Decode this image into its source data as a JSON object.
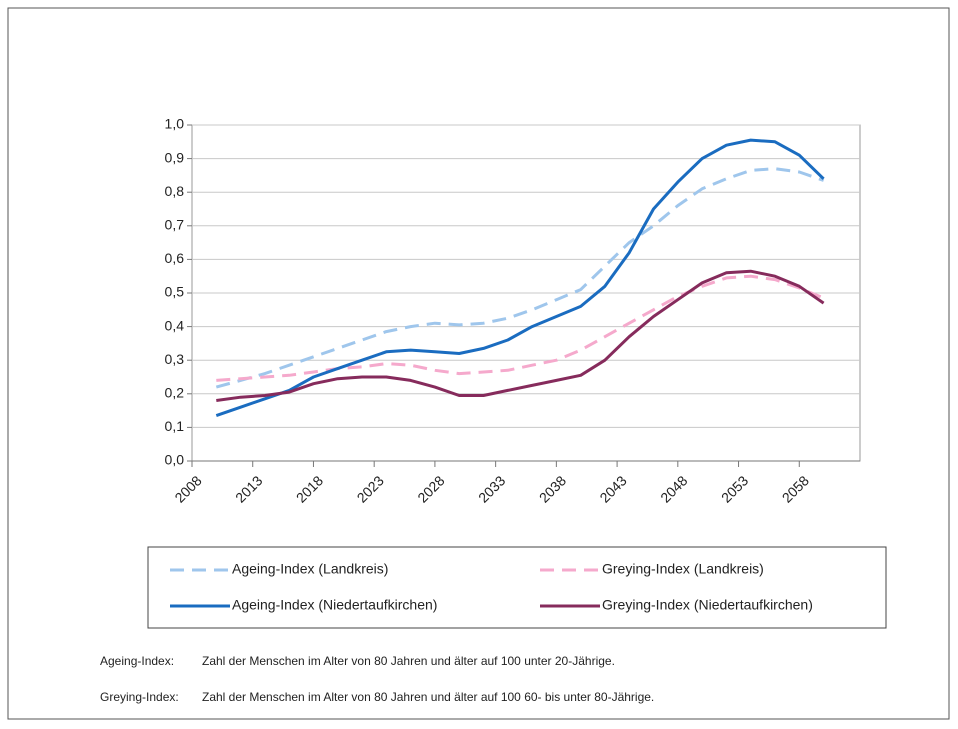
{
  "chart_data": {
    "type": "line",
    "x": [
      2010,
      2012,
      2014,
      2016,
      2018,
      2020,
      2022,
      2024,
      2026,
      2028,
      2030,
      2032,
      2034,
      2036,
      2038,
      2040,
      2042,
      2044,
      2046,
      2048,
      2050,
      2052,
      2054,
      2056,
      2058,
      2060
    ],
    "series": [
      {
        "name": "Ageing-Index (Landkreis)",
        "color": "#9fc6ec",
        "dashed": true,
        "values": [
          0.22,
          0.24,
          0.26,
          0.285,
          0.31,
          0.335,
          0.36,
          0.385,
          0.4,
          0.41,
          0.405,
          0.41,
          0.425,
          0.45,
          0.48,
          0.51,
          0.58,
          0.65,
          0.7,
          0.76,
          0.81,
          0.84,
          0.865,
          0.87,
          0.86,
          0.835
        ]
      },
      {
        "name": "Greying-Index (Landkreis)",
        "color": "#f5a9cc",
        "dashed": true,
        "values": [
          0.24,
          0.245,
          0.25,
          0.255,
          0.265,
          0.275,
          0.28,
          0.29,
          0.285,
          0.27,
          0.26,
          0.265,
          0.27,
          0.285,
          0.3,
          0.33,
          0.37,
          0.41,
          0.45,
          0.49,
          0.52,
          0.545,
          0.55,
          0.54,
          0.515,
          0.485
        ]
      },
      {
        "name": "Ageing-Index (Niedertaufkirchen)",
        "color": "#1a6cc0",
        "dashed": false,
        "values": [
          0.135,
          0.16,
          0.185,
          0.21,
          0.25,
          0.275,
          0.3,
          0.325,
          0.33,
          0.325,
          0.32,
          0.335,
          0.36,
          0.4,
          0.43,
          0.46,
          0.52,
          0.62,
          0.75,
          0.83,
          0.9,
          0.94,
          0.955,
          0.95,
          0.91,
          0.84
        ]
      },
      {
        "name": "Greying-Index (Niedertaufkirchen)",
        "color": "#862b5c",
        "dashed": false,
        "values": [
          0.18,
          0.19,
          0.195,
          0.205,
          0.23,
          0.245,
          0.25,
          0.25,
          0.24,
          0.22,
          0.195,
          0.195,
          0.21,
          0.225,
          0.24,
          0.255,
          0.3,
          0.37,
          0.43,
          0.48,
          0.53,
          0.56,
          0.565,
          0.55,
          0.52,
          0.47
        ]
      }
    ],
    "xlim": [
      2008,
      2063
    ],
    "xticks": [
      2008,
      2013,
      2018,
      2023,
      2028,
      2033,
      2038,
      2043,
      2048,
      2053,
      2058
    ],
    "ylim": [
      0,
      1
    ],
    "yticks": [
      {
        "value": 0,
        "label": "0,0"
      },
      {
        "value": 0.1,
        "label": "0,1"
      },
      {
        "value": 0.2,
        "label": "0,2"
      },
      {
        "value": 0.3,
        "label": "0,3"
      },
      {
        "value": 0.4,
        "label": "0,4"
      },
      {
        "value": 0.5,
        "label": "0,5"
      },
      {
        "value": 0.6,
        "label": "0,6"
      },
      {
        "value": 0.7,
        "label": "0,7"
      },
      {
        "value": 0.8,
        "label": "0,8"
      },
      {
        "value": 0.9,
        "label": "0,9"
      },
      {
        "value": 1,
        "label": "1,0"
      }
    ],
    "grid": true
  },
  "notes": [
    {
      "term": "Ageing-Index:",
      "text": "Zahl der Menschen im Alter von 80 Jahren und älter auf 100 unter 20-Jährige."
    },
    {
      "term": "Greying-Index:",
      "text": "Zahl der Menschen im Alter von 80 Jahren und älter auf 100 60- bis unter 80-Jährige."
    }
  ]
}
